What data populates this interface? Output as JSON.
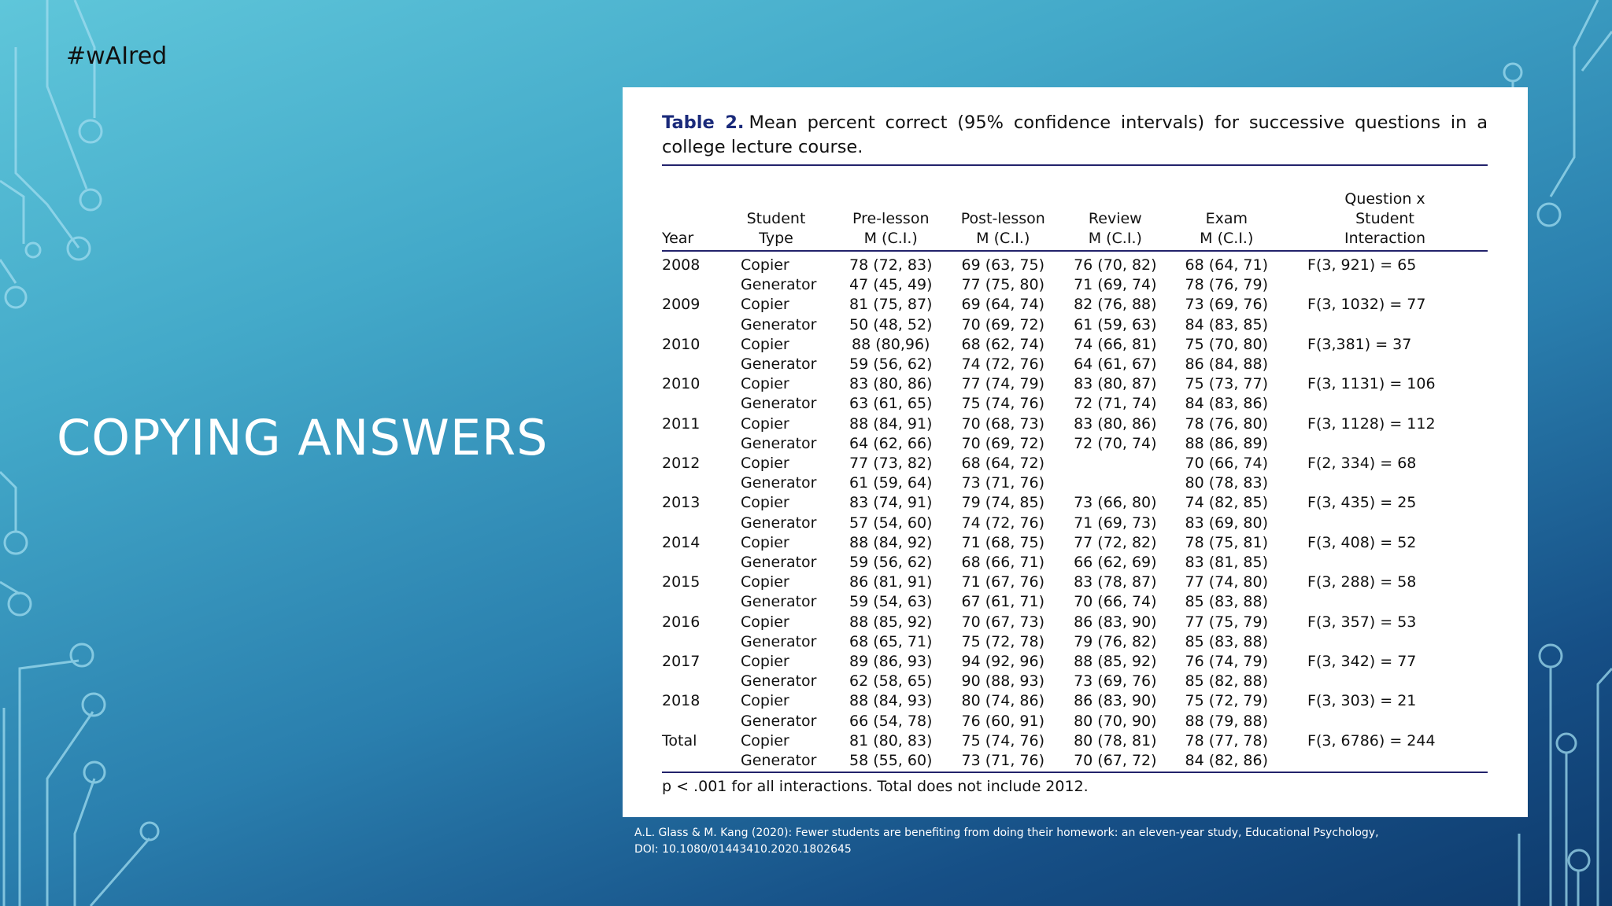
{
  "slide": {
    "hashtag": "#wAIred",
    "title": "COPYING ANSWERS",
    "citation_line1": "A.L. Glass & M. Kang (2020): Fewer students are benefiting from doing their homework: an eleven-year study, Educational Psychology,",
    "citation_line2": "DOI: 10.1080/01443410.2020.1802645"
  },
  "table": {
    "label": "Table 2.",
    "caption": "Mean percent correct (95% confidence intervals) for successive questions in a college lecture course.",
    "headers": {
      "year": "Year",
      "type_1": "Student",
      "type_2": "Type",
      "pre_1": "Pre-lesson",
      "pre_2": "M (C.I.)",
      "post_1": "Post-lesson",
      "post_2": "M (C.I.)",
      "review_1": "Review",
      "review_2": "M (C.I.)",
      "exam_1": "Exam",
      "exam_2": "M (C.I.)",
      "inter_1": "Question x",
      "inter_2": "Student",
      "inter_3": "Interaction"
    },
    "rows": [
      {
        "year": "2008",
        "type": "Copier",
        "pre": "78 (72, 83)",
        "post": "69 (63, 75)",
        "review": "76 (70, 82)",
        "exam": "68 (64, 71)",
        "f": "F(3, 921) = 65"
      },
      {
        "year": "",
        "type": "Generator",
        "pre": "47 (45, 49)",
        "post": "77 (75, 80)",
        "review": "71 (69, 74)",
        "exam": "78 (76, 79)",
        "f": ""
      },
      {
        "year": "2009",
        "type": "Copier",
        "pre": "81 (75, 87)",
        "post": "69 (64, 74)",
        "review": "82 (76, 88)",
        "exam": "73 (69, 76)",
        "f": "F(3, 1032) = 77"
      },
      {
        "year": "",
        "type": "Generator",
        "pre": "50 (48, 52)",
        "post": "70 (69, 72)",
        "review": "61 (59, 63)",
        "exam": "84 (83, 85)",
        "f": ""
      },
      {
        "year": "2010",
        "type": "Copier",
        "pre": "88 (80,96)",
        "post": "68 (62, 74)",
        "review": "74 (66, 81)",
        "exam": "75 (70, 80)",
        "f": "F(3,381) = 37"
      },
      {
        "year": "",
        "type": "Generator",
        "pre": "59 (56, 62)",
        "post": "74 (72, 76)",
        "review": "64 (61, 67)",
        "exam": "86 (84, 88)",
        "f": ""
      },
      {
        "year": "2010",
        "type": "Copier",
        "pre": "83 (80, 86)",
        "post": "77 (74, 79)",
        "review": "83 (80, 87)",
        "exam": "75 (73, 77)",
        "f": "F(3, 1131) = 106"
      },
      {
        "year": "",
        "type": "Generator",
        "pre": "63 (61, 65)",
        "post": "75 (74, 76)",
        "review": "72 (71, 74)",
        "exam": "84 (83, 86)",
        "f": ""
      },
      {
        "year": "2011",
        "type": "Copier",
        "pre": "88 (84, 91)",
        "post": "70 (68, 73)",
        "review": "83 (80, 86)",
        "exam": "78 (76, 80)",
        "f": "F(3, 1128) = 112"
      },
      {
        "year": "",
        "type": "Generator",
        "pre": "64 (62, 66)",
        "post": "70 (69, 72)",
        "review": "72 (70, 74)",
        "exam": "88 (86, 89)",
        "f": ""
      },
      {
        "year": "2012",
        "type": "Copier",
        "pre": "77 (73, 82)",
        "post": "68 (64, 72)",
        "review": "",
        "exam": "70 (66, 74)",
        "f": "F(2, 334) = 68"
      },
      {
        "year": "",
        "type": "Generator",
        "pre": "61 (59, 64)",
        "post": "73 (71, 76)",
        "review": "",
        "exam": "80 (78, 83)",
        "f": ""
      },
      {
        "year": "2013",
        "type": "Copier",
        "pre": "83 (74, 91)",
        "post": "79 (74, 85)",
        "review": "73 (66, 80)",
        "exam": "74 (82, 85)",
        "f": "F(3, 435) = 25"
      },
      {
        "year": "",
        "type": "Generator",
        "pre": "57 (54, 60)",
        "post": "74 (72, 76)",
        "review": "71 (69, 73)",
        "exam": "83 (69, 80)",
        "f": ""
      },
      {
        "year": "2014",
        "type": "Copier",
        "pre": "88 (84, 92)",
        "post": "71 (68, 75)",
        "review": "77 (72, 82)",
        "exam": "78 (75, 81)",
        "f": "F(3, 408) = 52"
      },
      {
        "year": "",
        "type": "Generator",
        "pre": "59 (56, 62)",
        "post": "68 (66, 71)",
        "review": "66 (62, 69)",
        "exam": "83 (81, 85)",
        "f": ""
      },
      {
        "year": "2015",
        "type": "Copier",
        "pre": "86 (81, 91)",
        "post": "71 (67, 76)",
        "review": "83 (78, 87)",
        "exam": "77 (74, 80)",
        "f": "F(3, 288) = 58"
      },
      {
        "year": "",
        "type": "Generator",
        "pre": "59 (54, 63)",
        "post": "67 (61, 71)",
        "review": "70 (66, 74)",
        "exam": "85 (83, 88)",
        "f": ""
      },
      {
        "year": "2016",
        "type": "Copier",
        "pre": "88 (85, 92)",
        "post": "70 (67, 73)",
        "review": "86 (83, 90)",
        "exam": "77 (75, 79)",
        "f": "F(3, 357) = 53"
      },
      {
        "year": "",
        "type": "Generator",
        "pre": "68 (65, 71)",
        "post": "75 (72, 78)",
        "review": "79 (76, 82)",
        "exam": "85 (83, 88)",
        "f": ""
      },
      {
        "year": "2017",
        "type": "Copier",
        "pre": "89 (86, 93)",
        "post": "94 (92, 96)",
        "review": "88 (85, 92)",
        "exam": "76 (74, 79)",
        "f": "F(3, 342) = 77"
      },
      {
        "year": "",
        "type": "Generator",
        "pre": "62 (58, 65)",
        "post": "90 (88, 93)",
        "review": "73 (69, 76)",
        "exam": "85 (82, 88)",
        "f": ""
      },
      {
        "year": "2018",
        "type": "Copier",
        "pre": "88 (84, 93)",
        "post": "80 (74, 86)",
        "review": "86 (83, 90)",
        "exam": "75 (72, 79)",
        "f": "F(3, 303) = 21"
      },
      {
        "year": "",
        "type": "Generator",
        "pre": "66 (54, 78)",
        "post": "76 (60, 91)",
        "review": "80 (70, 90)",
        "exam": "88 (79, 88)",
        "f": ""
      },
      {
        "year": "Total",
        "type": "Copier",
        "pre": "81 (80, 83)",
        "post": "75 (74, 76)",
        "review": "80 (78, 81)",
        "exam": "78 (77, 78)",
        "f": "F(3, 6786) = 244"
      },
      {
        "year": "",
        "type": "Generator",
        "pre": "58 (55, 60)",
        "post": "73 (71, 76)",
        "review": "70 (67, 72)",
        "exam": "84 (82, 86)",
        "f": ""
      }
    ],
    "footnote": "p < .001 for all interactions. Total does not include 2012."
  }
}
